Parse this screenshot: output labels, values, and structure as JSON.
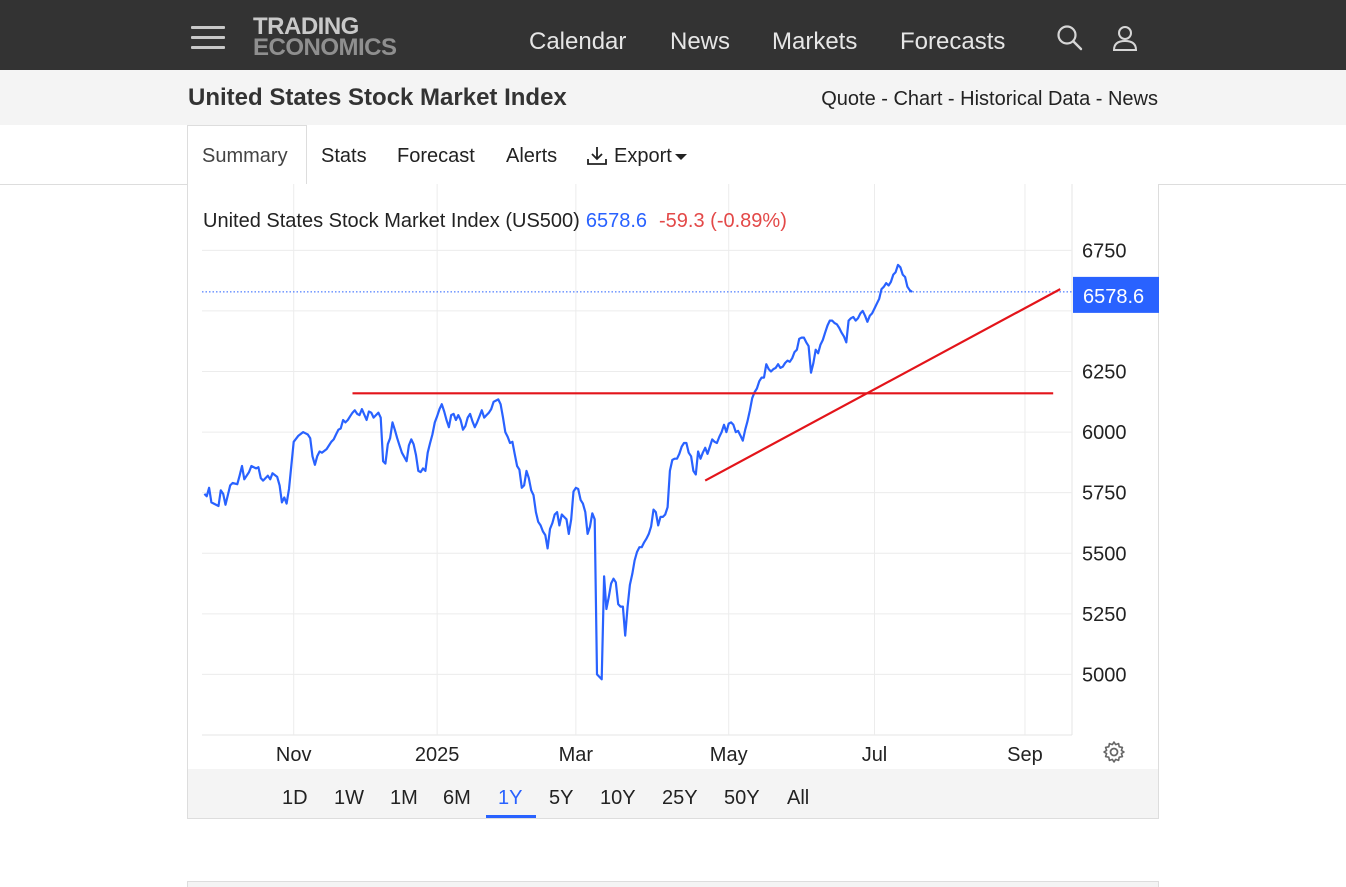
{
  "brand": {
    "line1": "TRADING",
    "line2": "ECONOMICS"
  },
  "nav": {
    "items": [
      "Calendar",
      "News",
      "Markets",
      "Forecasts"
    ]
  },
  "icons": {
    "menu": "hamburger-menu-icon",
    "search": "search-icon",
    "user": "user-icon",
    "export": "download-icon",
    "settings": "gear-icon"
  },
  "page": {
    "title": "United States Stock Market Index",
    "quicklinks": [
      "Quote",
      "Chart",
      "Historical Data",
      "News"
    ],
    "separator": " - "
  },
  "tabs": [
    "Summary",
    "Stats",
    "Forecast",
    "Alerts",
    "Export"
  ],
  "active_tab": "Summary",
  "quote": {
    "label": "United States Stock Market Index (US500)",
    "price": "6578.6",
    "change": "-59.3 (-0.89%)",
    "price_tag": "6578.6"
  },
  "ranges": [
    "1D",
    "1W",
    "1M",
    "6M",
    "1Y",
    "5Y",
    "10Y",
    "25Y",
    "50Y",
    "All"
  ],
  "active_range": "1Y",
  "colors": {
    "series": "#2962ff",
    "trendline": "#e3141a",
    "negative": "#e34948",
    "price_tag_bg": "#2962ff",
    "topbar": "#333333"
  },
  "chart_data": {
    "type": "line",
    "ylim": [
      4750,
      6900
    ],
    "y_ticks": [
      5000,
      5250,
      5500,
      5750,
      6000,
      6250,
      6750
    ],
    "x_ticks": [
      {
        "label": "Nov",
        "day": 31
      },
      {
        "label": "2025",
        "day": 92
      },
      {
        "label": "Mar",
        "day": 151
      },
      {
        "label": "May",
        "day": 216
      },
      {
        "label": "Jul",
        "day": 278
      },
      {
        "label": "Sep",
        "day": 342
      }
    ],
    "xlim": [
      -8,
      362
    ],
    "last_value": 6578.6,
    "series": [
      {
        "day_value_pairs": [
          [
            -7,
            5745
          ],
          [
            -6,
            5735
          ],
          [
            -5,
            5770
          ],
          [
            -4,
            5710
          ],
          [
            -3,
            5705
          ],
          [
            -1,
            5695
          ],
          [
            0,
            5760
          ],
          [
            1,
            5745
          ],
          [
            2,
            5700
          ],
          [
            4,
            5780
          ],
          [
            5,
            5790
          ],
          [
            7,
            5785
          ],
          [
            8,
            5820
          ],
          [
            9,
            5860
          ],
          [
            10,
            5805
          ],
          [
            12,
            5835
          ],
          [
            13,
            5860
          ],
          [
            15,
            5850
          ],
          [
            16,
            5855
          ],
          [
            17,
            5810
          ],
          [
            18,
            5800
          ],
          [
            20,
            5820
          ],
          [
            21,
            5805
          ],
          [
            22,
            5830
          ],
          [
            24,
            5815
          ],
          [
            25,
            5780
          ],
          [
            26,
            5710
          ],
          [
            27,
            5730
          ],
          [
            28,
            5705
          ],
          [
            29,
            5765
          ],
          [
            31,
            5960
          ],
          [
            33,
            5985
          ],
          [
            35,
            6000
          ],
          [
            36,
            5995
          ],
          [
            37,
            5990
          ],
          [
            38,
            5975
          ],
          [
            39,
            5900
          ],
          [
            40,
            5865
          ],
          [
            41,
            5900
          ],
          [
            42,
            5920
          ],
          [
            43,
            5915
          ],
          [
            45,
            5930
          ],
          [
            46,
            5945
          ],
          [
            47,
            5960
          ],
          [
            48,
            5970
          ],
          [
            49,
            5990
          ],
          [
            50,
            6010
          ],
          [
            51,
            6015
          ],
          [
            52,
            6050
          ],
          [
            53,
            6040
          ],
          [
            54,
            6050
          ],
          [
            55,
            6065
          ],
          [
            56,
            6080
          ],
          [
            57,
            6090
          ],
          [
            58,
            6075
          ],
          [
            59,
            6070
          ],
          [
            60,
            6095
          ],
          [
            62,
            6050
          ],
          [
            63,
            6085
          ],
          [
            64,
            6080
          ],
          [
            65,
            6060
          ],
          [
            66,
            6070
          ],
          [
            67,
            6080
          ],
          [
            68,
            6060
          ],
          [
            69,
            5880
          ],
          [
            70,
            5870
          ],
          [
            71,
            5950
          ],
          [
            72,
            5975
          ],
          [
            73,
            6040
          ],
          [
            74,
            6010
          ],
          [
            75,
            5975
          ],
          [
            76,
            5945
          ],
          [
            77,
            5915
          ],
          [
            79,
            5880
          ],
          [
            80,
            5945
          ],
          [
            81,
            5970
          ],
          [
            82,
            5950
          ],
          [
            83,
            5905
          ],
          [
            84,
            5840
          ],
          [
            85,
            5835
          ],
          [
            86,
            5850
          ],
          [
            87,
            5840
          ],
          [
            88,
            5915
          ],
          [
            89,
            5955
          ],
          [
            90,
            5990
          ],
          [
            91,
            6040
          ],
          [
            92,
            6065
          ],
          [
            93,
            6095
          ],
          [
            94,
            6115
          ],
          [
            95,
            6085
          ],
          [
            96,
            6050
          ],
          [
            97,
            6020
          ],
          [
            98,
            6070
          ],
          [
            99,
            6075
          ],
          [
            100,
            6050
          ],
          [
            101,
            6070
          ],
          [
            102,
            6050
          ],
          [
            103,
            6010
          ],
          [
            104,
            6025
          ],
          [
            105,
            6060
          ],
          [
            106,
            6075
          ],
          [
            107,
            6045
          ],
          [
            108,
            6020
          ],
          [
            109,
            6040
          ],
          [
            110,
            6065
          ],
          [
            111,
            6090
          ],
          [
            112,
            6060
          ],
          [
            113,
            6070
          ],
          [
            114,
            6080
          ],
          [
            115,
            6095
          ],
          [
            116,
            6125
          ],
          [
            117,
            6130
          ],
          [
            118,
            6135
          ],
          [
            119,
            6115
          ],
          [
            120,
            6060
          ],
          [
            121,
            6000
          ],
          [
            122,
            5980
          ],
          [
            123,
            5955
          ],
          [
            124,
            5960
          ],
          [
            125,
            5910
          ],
          [
            126,
            5860
          ],
          [
            127,
            5845
          ],
          [
            128,
            5770
          ],
          [
            129,
            5780
          ],
          [
            130,
            5840
          ],
          [
            131,
            5810
          ],
          [
            132,
            5760
          ],
          [
            133,
            5740
          ],
          [
            134,
            5670
          ],
          [
            135,
            5630
          ],
          [
            136,
            5615
          ],
          [
            137,
            5590
          ],
          [
            138,
            5575
          ],
          [
            139,
            5520
          ],
          [
            140,
            5600
          ],
          [
            141,
            5625
          ],
          [
            142,
            5660
          ],
          [
            143,
            5670
          ],
          [
            144,
            5615
          ],
          [
            145,
            5660
          ],
          [
            146,
            5650
          ],
          [
            147,
            5640
          ],
          [
            148,
            5580
          ],
          [
            149,
            5640
          ],
          [
            150,
            5755
          ],
          [
            151,
            5770
          ],
          [
            152,
            5765
          ],
          [
            153,
            5720
          ],
          [
            154,
            5705
          ],
          [
            155,
            5670
          ],
          [
            156,
            5580
          ],
          [
            157,
            5610
          ],
          [
            158,
            5665
          ],
          [
            159,
            5640
          ],
          [
            160,
            5000
          ],
          [
            162,
            4980
          ],
          [
            163,
            5405
          ],
          [
            164,
            5270
          ],
          [
            165,
            5320
          ],
          [
            166,
            5375
          ],
          [
            167,
            5395
          ],
          [
            168,
            5380
          ],
          [
            169,
            5290
          ],
          [
            170,
            5280
          ],
          [
            171,
            5280
          ],
          [
            172,
            5160
          ],
          [
            173,
            5280
          ],
          [
            174,
            5370
          ],
          [
            175,
            5415
          ],
          [
            176,
            5470
          ],
          [
            177,
            5505
          ],
          [
            178,
            5525
          ],
          [
            179,
            5525
          ],
          [
            180,
            5545
          ],
          [
            181,
            5560
          ],
          [
            182,
            5580
          ],
          [
            183,
            5610
          ],
          [
            184,
            5680
          ],
          [
            185,
            5670
          ],
          [
            186,
            5615
          ],
          [
            187,
            5650
          ],
          [
            188,
            5650
          ],
          [
            189,
            5660
          ],
          [
            190,
            5690
          ],
          [
            191,
            5840
          ],
          [
            192,
            5885
          ],
          [
            193,
            5890
          ],
          [
            194,
            5890
          ],
          [
            195,
            5910
          ],
          [
            196,
            5940
          ],
          [
            197,
            5955
          ],
          [
            198,
            5955
          ],
          [
            199,
            5915
          ],
          [
            200,
            5900
          ],
          [
            201,
            5840
          ],
          [
            202,
            5825
          ],
          [
            203,
            5920
          ],
          [
            204,
            5890
          ],
          [
            205,
            5915
          ],
          [
            206,
            5935
          ],
          [
            207,
            5910
          ],
          [
            208,
            5940
          ],
          [
            209,
            5970
          ],
          [
            210,
            5960
          ],
          [
            211,
            5955
          ],
          [
            212,
            5980
          ],
          [
            213,
            6000
          ],
          [
            214,
            6030
          ],
          [
            215,
            6000
          ],
          [
            216,
            6035
          ],
          [
            217,
            6040
          ],
          [
            218,
            6030
          ],
          [
            219,
            6000
          ],
          [
            220,
            6005
          ],
          [
            221,
            5985
          ],
          [
            222,
            5965
          ],
          [
            223,
            6010
          ],
          [
            224,
            6045
          ],
          [
            225,
            6090
          ],
          [
            226,
            6140
          ],
          [
            227,
            6165
          ],
          [
            228,
            6180
          ],
          [
            229,
            6210
          ],
          [
            230,
            6225
          ],
          [
            231,
            6225
          ],
          [
            232,
            6280
          ],
          [
            233,
            6260
          ],
          [
            234,
            6250
          ],
          [
            235,
            6260
          ],
          [
            236,
            6265
          ],
          [
            237,
            6280
          ],
          [
            238,
            6265
          ],
          [
            239,
            6270
          ],
          [
            240,
            6285
          ],
          [
            241,
            6295
          ],
          [
            242,
            6290
          ],
          [
            243,
            6305
          ],
          [
            244,
            6330
          ],
          [
            245,
            6340
          ],
          [
            246,
            6385
          ],
          [
            247,
            6390
          ],
          [
            248,
            6390
          ],
          [
            249,
            6370
          ],
          [
            250,
            6355
          ],
          [
            251,
            6245
          ],
          [
            252,
            6285
          ],
          [
            253,
            6340
          ],
          [
            254,
            6325
          ],
          [
            255,
            6360
          ],
          [
            256,
            6380
          ],
          [
            257,
            6410
          ],
          [
            258,
            6440
          ],
          [
            259,
            6460
          ],
          [
            260,
            6460
          ],
          [
            261,
            6450
          ],
          [
            262,
            6445
          ],
          [
            263,
            6430
          ],
          [
            264,
            6410
          ],
          [
            265,
            6395
          ],
          [
            266,
            6370
          ],
          [
            267,
            6460
          ],
          [
            268,
            6470
          ],
          [
            269,
            6475
          ],
          [
            270,
            6460
          ],
          [
            271,
            6470
          ],
          [
            272,
            6490
          ],
          [
            273,
            6500
          ],
          [
            274,
            6480
          ],
          [
            275,
            6455
          ],
          [
            276,
            6480
          ],
          [
            277,
            6490
          ],
          [
            278,
            6510
          ],
          [
            279,
            6530
          ],
          [
            280,
            6550
          ],
          [
            281,
            6590
          ],
          [
            282,
            6600
          ],
          [
            283,
            6615
          ],
          [
            284,
            6605
          ],
          [
            285,
            6620
          ],
          [
            286,
            6650
          ],
          [
            287,
            6660
          ],
          [
            288,
            6690
          ],
          [
            289,
            6680
          ],
          [
            290,
            6650
          ],
          [
            291,
            6640
          ],
          [
            292,
            6600
          ],
          [
            293,
            6585
          ],
          [
            294,
            6578.6
          ]
        ]
      }
    ],
    "annotations": {
      "horizontal_line": {
        "y": 6160,
        "x_start": 56,
        "x_end": 354
      },
      "trend_line": {
        "from": [
          206,
          5800
        ],
        "to": [
          357,
          6590
        ]
      },
      "current_price_line": {
        "y": 6578.6
      }
    }
  }
}
